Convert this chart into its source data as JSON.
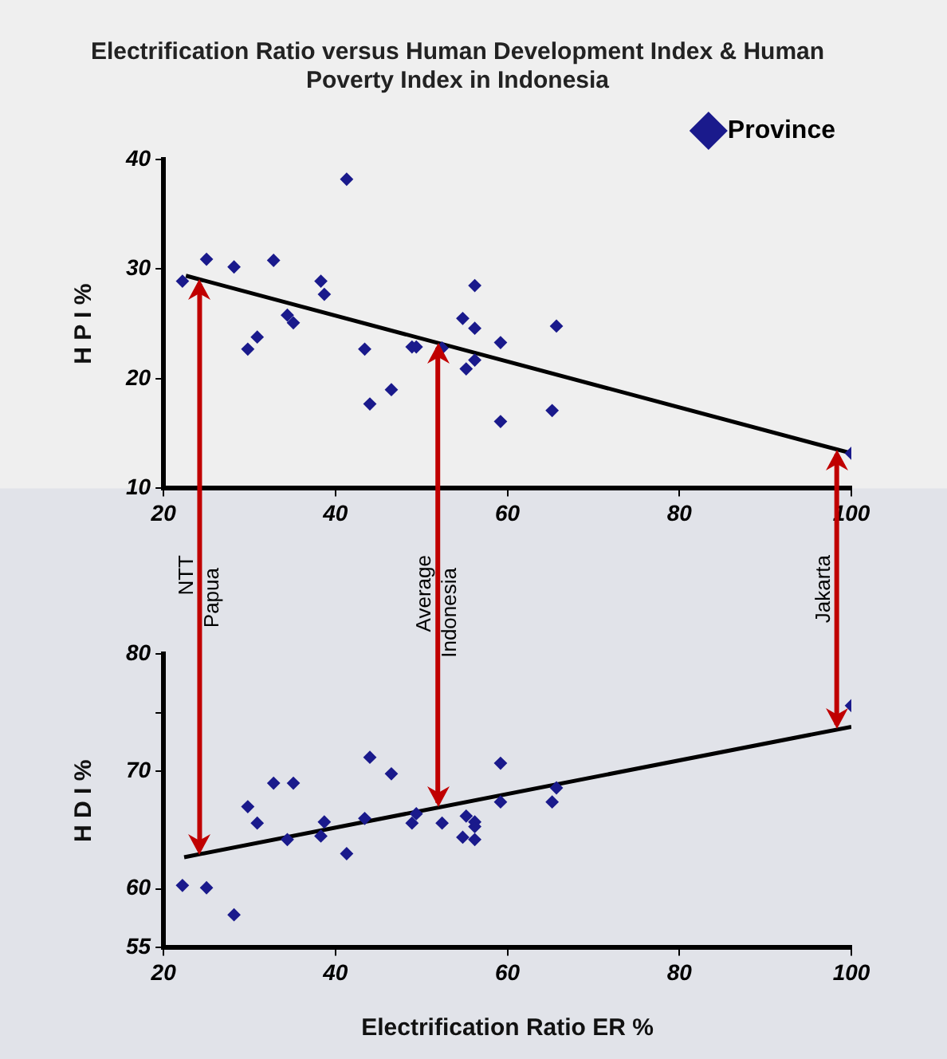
{
  "chart_data": [
    {
      "type": "scatter",
      "title": "Electrification Ratio versus Human Development Index & Human Poverty Index in Indonesia",
      "ylabel": "H P I %",
      "xlim": [
        20,
        100
      ],
      "xticks": [
        20,
        40,
        60,
        80,
        100
      ],
      "ylim": [
        10,
        40
      ],
      "yticks": [
        10,
        20,
        30,
        40
      ],
      "grid": false,
      "legend": "top right",
      "ref_lines": [
        {
          "axis": "x",
          "value": 24.2,
          "color": "#c00000"
        },
        {
          "axis": "x",
          "value": 51.9,
          "color": "#c00000"
        },
        {
          "axis": "x",
          "value": 98.3,
          "color": "#c00000"
        }
      ],
      "series": [
        {
          "name": "Province",
          "color": "#1a1a8c",
          "marker": "diamond",
          "x": [
            22.2,
            25.0,
            28.2,
            32.8,
            29.8,
            30.9,
            34.4,
            35.1,
            38.3,
            38.7,
            41.3,
            43.4,
            44.0,
            46.5,
            48.9,
            49.4,
            52.4,
            54.8,
            55.2,
            56.2,
            56.2,
            56.2,
            59.2,
            59.2,
            65.2,
            65.7,
            100
          ],
          "values": [
            28.9,
            30.9,
            30.2,
            30.8,
            22.7,
            23.8,
            25.8,
            25.1,
            28.9,
            27.7,
            38.2,
            22.7,
            17.7,
            19.0,
            22.9,
            22.9,
            22.8,
            25.5,
            20.9,
            28.5,
            24.6,
            21.7,
            23.3,
            16.1,
            17.1,
            24.8,
            13.2
          ]
        },
        {
          "type": "line",
          "color": "#000000",
          "marker": "none",
          "x": [
            22.6,
            100
          ],
          "values": [
            29.4,
            13.2
          ]
        }
      ]
    },
    {
      "type": "scatter",
      "xlabel": "Electrification Ratio ER %",
      "ylabel": "H D I %",
      "xlim": [
        20,
        100
      ],
      "xticks": [
        20,
        40,
        60,
        80,
        100
      ],
      "ylim": [
        55,
        80
      ],
      "yticks": [
        55,
        60,
        70,
        {
          "value": 75,
          "label": null
        },
        80
      ],
      "grid": false,
      "ref_lines": [
        {
          "axis": "x",
          "value": 24.2,
          "label": "NTT Papua",
          "color": "#c00000"
        },
        {
          "axis": "x",
          "value": 51.9,
          "label": "Average Indonesia",
          "color": "#c00000"
        },
        {
          "axis": "x",
          "value": 98.3,
          "label": "Jakarta",
          "color": "#c00000"
        }
      ],
      "series": [
        {
          "color": "#1a1a8c",
          "marker": "diamond",
          "x": [
            22.2,
            25.0,
            28.2,
            29.8,
            30.9,
            32.8,
            35.1,
            34.4,
            38.3,
            38.7,
            41.3,
            43.4,
            44.0,
            46.5,
            48.9,
            49.4,
            52.4,
            54.8,
            55.2,
            56.2,
            56.2,
            56.2,
            59.2,
            59.2,
            65.2,
            65.7,
            100
          ],
          "values": [
            60.3,
            60.1,
            57.8,
            67.0,
            65.6,
            69.0,
            69.0,
            64.2,
            64.5,
            65.7,
            63.0,
            66.0,
            71.2,
            69.8,
            65.6,
            66.4,
            65.6,
            64.4,
            66.2,
            65.7,
            65.3,
            64.2,
            70.7,
            67.4,
            67.4,
            68.6,
            75.6
          ]
        },
        {
          "type": "line",
          "color": "#000000",
          "marker": "none",
          "x": [
            22.4,
            100
          ],
          "values": [
            62.7,
            73.8
          ]
        }
      ]
    }
  ]
}
